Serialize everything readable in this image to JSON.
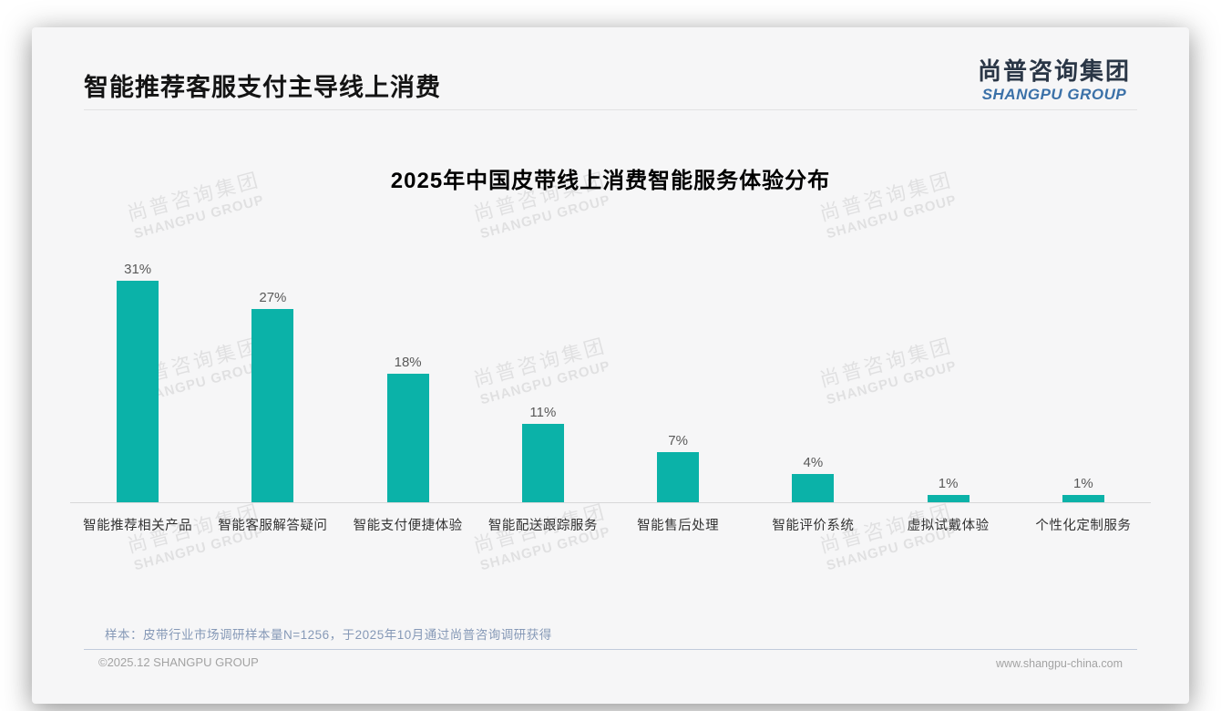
{
  "page": {
    "title": "智能推荐客服支付主导线上消费",
    "logo": {
      "cn": "尚普咨询集团",
      "en": "SHANGPU GROUP"
    },
    "watermark": {
      "cn": "尚普咨询集团",
      "en": "SHANGPU GROUP"
    },
    "source_note": "样本：皮带行业市场调研样本量N=1256，于2025年10月通过尚普咨询调研获得",
    "footer_left": "©2025.12 SHANGPU GROUP",
    "footer_right": "www.shangpu-china.com",
    "colors": {
      "bar": "#0bb2a8",
      "logo_en_blue": "#3b71a8",
      "note_blue_gray": "#8699b7",
      "card_bg": "#f6f6f7"
    }
  },
  "chart_data": {
    "type": "bar",
    "title": "2025年中国皮带线上消费智能服务体验分布",
    "categories": [
      "智能推荐相关产品",
      "智能客服解答疑问",
      "智能支付便捷体验",
      "智能配送跟踪服务",
      "智能售后处理",
      "智能评价系统",
      "虚拟试戴体验",
      "个性化定制服务"
    ],
    "values": [
      31,
      27,
      18,
      11,
      7,
      4,
      1,
      1
    ],
    "unit": "%",
    "xlabel": "",
    "ylabel": "",
    "ylim": [
      0,
      35
    ],
    "grid": false,
    "legend": false,
    "bar_color": "#0bb2a8",
    "value_labels_shown": true
  }
}
